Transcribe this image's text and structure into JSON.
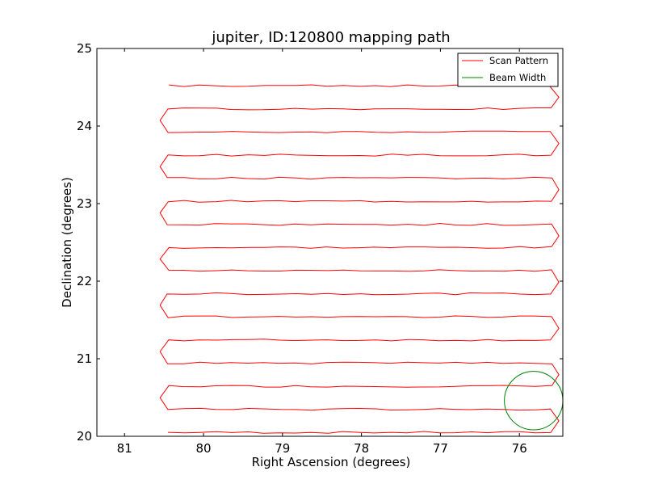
{
  "chart_data": {
    "type": "line",
    "title": "jupiter, ID:120800 mapping path",
    "xlabel": "Right Ascension (degrees)",
    "ylabel": "Declination (degrees)",
    "xlim": [
      81.35,
      75.45
    ],
    "ylim": [
      20,
      25
    ],
    "x_reversed": true,
    "xticks": [
      81,
      80,
      79,
      78,
      77,
      76
    ],
    "yticks": [
      20,
      21,
      22,
      23,
      24,
      25
    ],
    "legend_position": "top-right",
    "grid": false,
    "series": [
      {
        "name": "Scan Pattern",
        "color": "#ff0000",
        "kind": "path",
        "raster": {
          "left_ra": 80.45,
          "right_ra": 75.6,
          "first_dec": 20.05,
          "last_dec": 24.52,
          "rows": 16
        }
      },
      {
        "name": "Beam Width",
        "color": "#008000",
        "kind": "circle",
        "center_ra": 75.82,
        "center_dec": 20.46,
        "radius_ra": 0.37
      }
    ]
  }
}
